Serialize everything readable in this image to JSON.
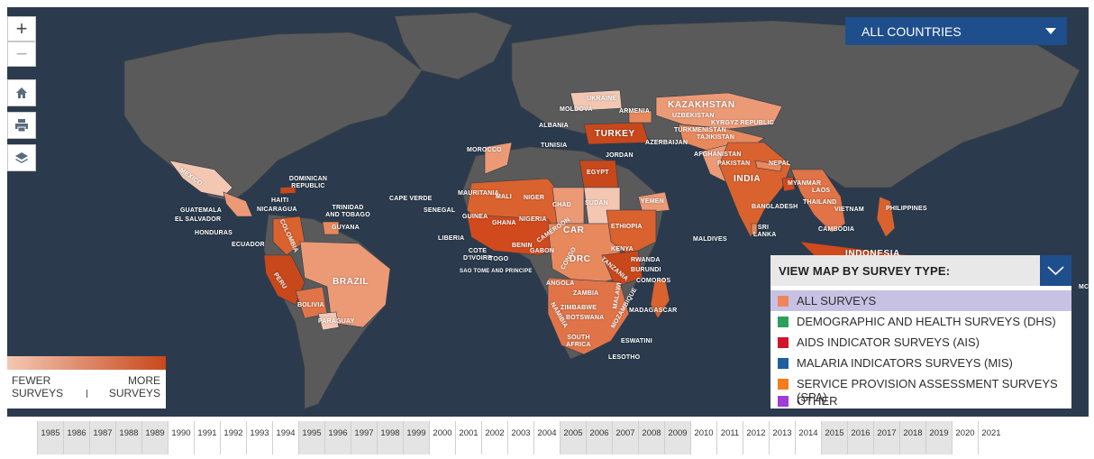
{
  "map_controls": {
    "zoom_in": "+",
    "zoom_out": "−"
  },
  "country_select": {
    "value": "ALL COUNTRIES"
  },
  "colors": {
    "ocean": "#2b3b4d",
    "land": "#5a5a5a",
    "heat_low": "#f4c7b3",
    "heat_mid": "#e8895d",
    "heat_high": "#c8481b"
  },
  "country_labels": [
    "KAZAKHSTAN",
    "UZBEKISTAN",
    "KYRGYZ REPUBLIC",
    "TURKMENISTAN",
    "TAJIKISTAN",
    "AFGHANISTAN",
    "PAKISTAN",
    "NEPAL",
    "INDIA",
    "BANGLADESH",
    "SRI LANKA",
    "MALDIVES",
    "MYANMAR",
    "LAOS",
    "THAILAND",
    "VIETNAM",
    "CAMBODIA",
    "PHILIPPINES",
    "INDONESIA",
    "MC",
    "UKRAINE",
    "MOLDOVA",
    "ARMENIA",
    "ALBANIA",
    "AZERBAIJAN",
    "TURKEY",
    "JORDAN",
    "EGYPT",
    "TUNISIA",
    "MOROCCO",
    "YEMEN",
    "SUDAN",
    "MAURITANIA",
    "MALI",
    "NIGER",
    "CHAD",
    "SENEGAL",
    "CAPE VERDE",
    "GUINEA",
    "GHANA",
    "NIGERIA",
    "LIBERIA",
    "COTE D'IVOIRE",
    "TOGO",
    "BENIN",
    "CAMEROON",
    "GABON",
    "CONGO",
    "SAO TOME AND PRINCIPE",
    "CAR",
    "ETHIOPIA",
    "KENYA",
    "RWANDA",
    "BURUNDI",
    "DRC",
    "TANZANIA",
    "COMOROS",
    "ANGOLA",
    "ZAMBIA",
    "MALAWI",
    "ZIMBABWE",
    "MOZAMBIQUE",
    "NAMIBIA",
    "BOTSWANA",
    "MADAGASCAR",
    "SOUTH AFRICA",
    "ESWATINI",
    "LESOTHO",
    "MEXICO",
    "DOMINICAN REPUBLIC",
    "HAITI",
    "GUATEMALA",
    "EL SALVADOR",
    "HONDURAS",
    "NICARAGUA",
    "TRINIDAD AND TOBAGO",
    "GUYANA",
    "COLOMBIA",
    "ECUADOR",
    "PERU",
    "BRAZIL",
    "BOLIVIA",
    "PARAGUAY"
  ],
  "legend": {
    "left_top": "FEWER",
    "left_bottom": "SURVEYS",
    "right_top": "MORE",
    "right_bottom": "SURVEYS"
  },
  "survey_panel": {
    "title": "VIEW MAP BY SURVEY TYPE:",
    "selected": "ALL SURVEYS",
    "options": [
      {
        "label": "ALL SURVEYS",
        "color": "#f0845a"
      },
      {
        "label": "DEMOGRAPHIC AND HEALTH SURVEYS (DHS)",
        "color": "#2ca05a"
      },
      {
        "label": "AIDS INDICATOR SURVEYS (AIS)",
        "color": "#d2142b"
      },
      {
        "label": "MALARIA INDICATORS SURVEYS (MIS)",
        "color": "#1f5fa0"
      },
      {
        "label": "SERVICE PROVISION ASSESSMENT SURVEYS (SPA)",
        "color": "#f57c1f"
      },
      {
        "label": "OTHER",
        "color": "#a23ad8"
      }
    ]
  },
  "timeline": {
    "years": [
      "1985",
      "1986",
      "1987",
      "1988",
      "1989",
      "1990",
      "1991",
      "1992",
      "1993",
      "1994",
      "1995",
      "1996",
      "1997",
      "1998",
      "1999",
      "2000",
      "2001",
      "2002",
      "2003",
      "2004",
      "2005",
      "2006",
      "2007",
      "2008",
      "2009",
      "2010",
      "2011",
      "2012",
      "2013",
      "2014",
      "2015",
      "2016",
      "2017",
      "2018",
      "2019",
      "2020",
      "2021"
    ],
    "shaded": [
      true,
      true,
      true,
      true,
      true,
      false,
      false,
      false,
      false,
      false,
      true,
      true,
      true,
      true,
      true,
      false,
      false,
      false,
      false,
      false,
      true,
      true,
      true,
      true,
      true,
      false,
      false,
      false,
      false,
      false,
      true,
      true,
      true,
      true,
      true,
      false,
      false
    ]
  }
}
